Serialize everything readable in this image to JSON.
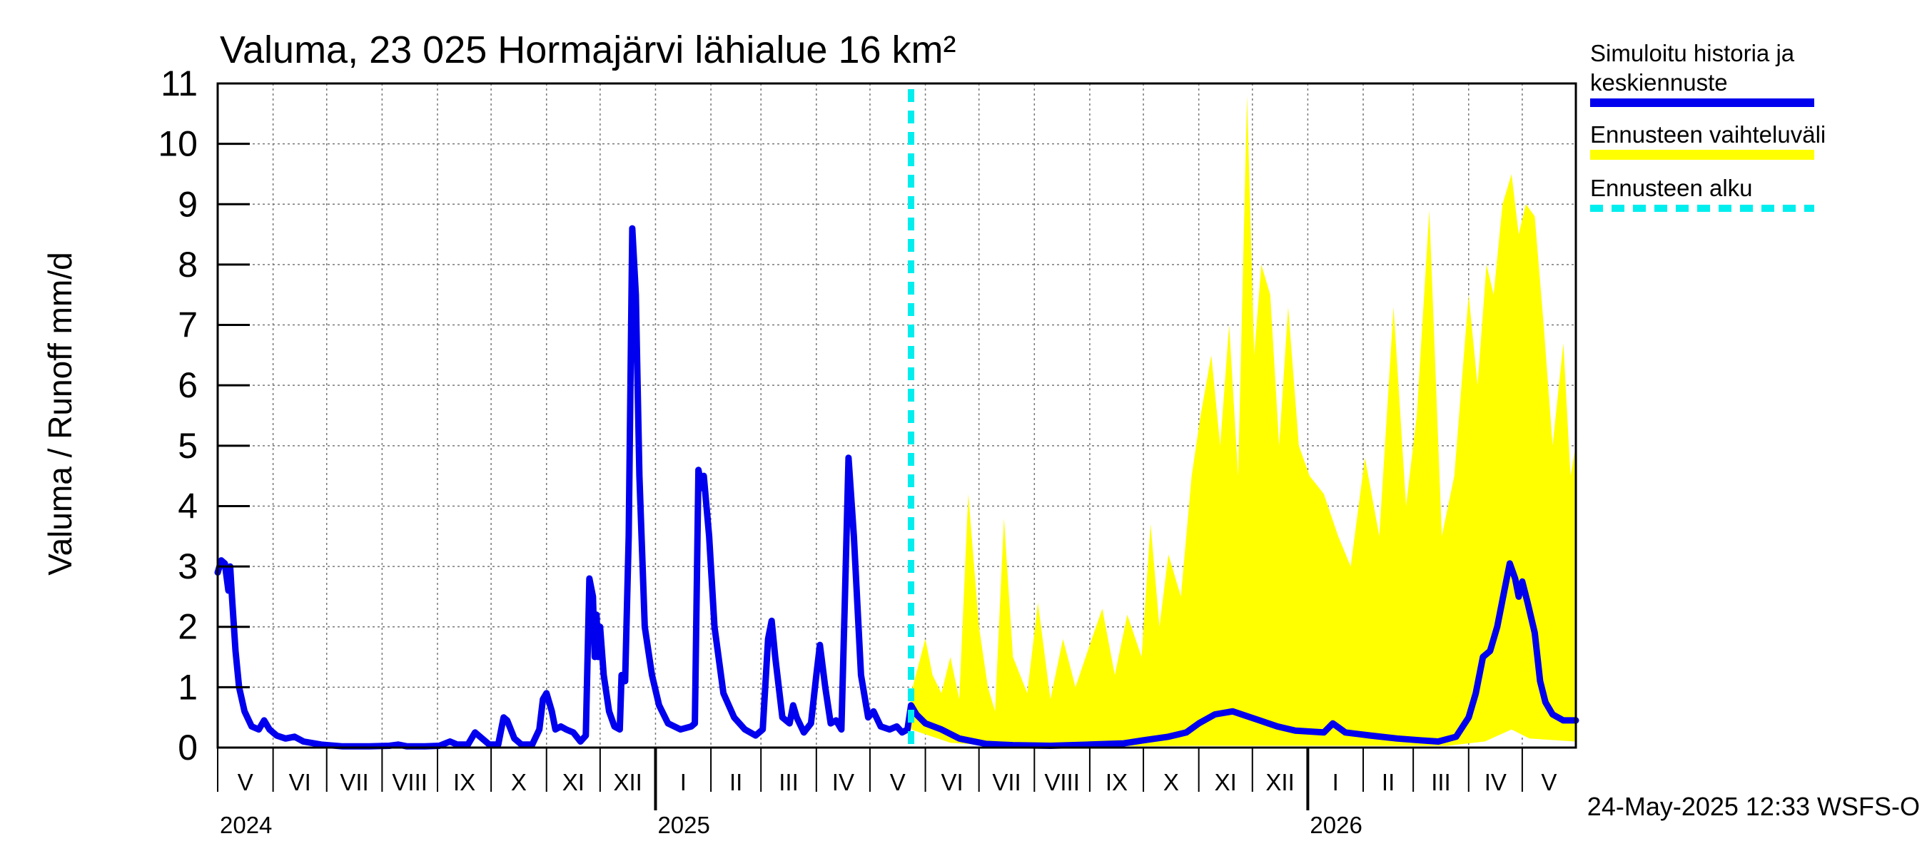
{
  "chart_data": {
    "type": "line",
    "title": "Valuma, 23 025 Hormajärvi lähialue 16 km²",
    "ylabel": "Valuma / Runoff    mm/d",
    "ylim": [
      0,
      11
    ],
    "yticks": [
      0,
      1,
      2,
      3,
      4,
      5,
      6,
      7,
      8,
      9,
      10,
      11
    ],
    "xlim": [
      "2024-05-01",
      "2026-05-31"
    ],
    "forecast_start": "2025-05-24",
    "grid": true,
    "legend_position": "top-right",
    "legend": [
      {
        "label": "Simuloitu historia ja keskiennuste",
        "line1": "Simuloitu historia ja",
        "line2": "keskiennuste",
        "color": "#0000ee",
        "style": "solid"
      },
      {
        "label": "Ennusteen vaihteluväli",
        "color": "#ffff00",
        "style": "band"
      },
      {
        "label": "Ennusteen alku",
        "color": "#00eeee",
        "style": "dashed"
      }
    ],
    "month_labels": [
      {
        "label": "V",
        "date": "2024-05-01"
      },
      {
        "label": "VI",
        "date": "2024-06-01"
      },
      {
        "label": "VII",
        "date": "2024-07-01"
      },
      {
        "label": "VIII",
        "date": "2024-08-01"
      },
      {
        "label": "IX",
        "date": "2024-09-01"
      },
      {
        "label": "X",
        "date": "2024-10-01"
      },
      {
        "label": "XI",
        "date": "2024-11-01"
      },
      {
        "label": "XII",
        "date": "2024-12-01"
      },
      {
        "label": "I",
        "date": "2025-01-01"
      },
      {
        "label": "II",
        "date": "2025-02-01"
      },
      {
        "label": "III",
        "date": "2025-03-01"
      },
      {
        "label": "IV",
        "date": "2025-04-01"
      },
      {
        "label": "V",
        "date": "2025-05-01"
      },
      {
        "label": "VI",
        "date": "2025-06-01"
      },
      {
        "label": "VII",
        "date": "2025-07-01"
      },
      {
        "label": "VIII",
        "date": "2025-08-01"
      },
      {
        "label": "IX",
        "date": "2025-09-01"
      },
      {
        "label": "X",
        "date": "2025-10-01"
      },
      {
        "label": "XI",
        "date": "2025-11-01"
      },
      {
        "label": "XII",
        "date": "2025-12-01"
      },
      {
        "label": "I",
        "date": "2026-01-01"
      },
      {
        "label": "II",
        "date": "2026-02-01"
      },
      {
        "label": "III",
        "date": "2026-03-01"
      },
      {
        "label": "IV",
        "date": "2026-04-01"
      },
      {
        "label": "V",
        "date": "2026-05-01"
      }
    ],
    "year_labels": [
      {
        "label": "2024",
        "date": "2024-05-01"
      },
      {
        "label": "2025",
        "date": "2025-01-01"
      },
      {
        "label": "2026",
        "date": "2026-01-01"
      }
    ],
    "series": [
      {
        "name": "Simuloitu historia ja keskiennuste",
        "color": "#0000ee",
        "points": [
          [
            "2024-05-01",
            2.9
          ],
          [
            "2024-05-03",
            3.1
          ],
          [
            "2024-05-05",
            3.05
          ],
          [
            "2024-05-07",
            2.6
          ],
          [
            "2024-05-08",
            3.0
          ],
          [
            "2024-05-09",
            2.5
          ],
          [
            "2024-05-11",
            1.6
          ],
          [
            "2024-05-13",
            1.0
          ],
          [
            "2024-05-16",
            0.6
          ],
          [
            "2024-05-20",
            0.35
          ],
          [
            "2024-05-24",
            0.3
          ],
          [
            "2024-05-27",
            0.45
          ],
          [
            "2024-05-30",
            0.3
          ],
          [
            "2024-06-03",
            0.2
          ],
          [
            "2024-06-08",
            0.15
          ],
          [
            "2024-06-13",
            0.18
          ],
          [
            "2024-06-18",
            0.1
          ],
          [
            "2024-06-28",
            0.05
          ],
          [
            "2024-07-10",
            0.02
          ],
          [
            "2024-07-25",
            0.02
          ],
          [
            "2024-08-05",
            0.03
          ],
          [
            "2024-08-10",
            0.05
          ],
          [
            "2024-08-15",
            0.02
          ],
          [
            "2024-08-25",
            0.02
          ],
          [
            "2024-09-02",
            0.03
          ],
          [
            "2024-09-08",
            0.1
          ],
          [
            "2024-09-12",
            0.05
          ],
          [
            "2024-09-18",
            0.05
          ],
          [
            "2024-09-22",
            0.25
          ],
          [
            "2024-09-26",
            0.15
          ],
          [
            "2024-09-30",
            0.05
          ],
          [
            "2024-10-05",
            0.05
          ],
          [
            "2024-10-08",
            0.5
          ],
          [
            "2024-10-10",
            0.45
          ],
          [
            "2024-10-14",
            0.15
          ],
          [
            "2024-10-18",
            0.05
          ],
          [
            "2024-10-24",
            0.05
          ],
          [
            "2024-10-28",
            0.3
          ],
          [
            "2024-10-30",
            0.8
          ],
          [
            "2024-11-01",
            0.9
          ],
          [
            "2024-11-04",
            0.6
          ],
          [
            "2024-11-06",
            0.3
          ],
          [
            "2024-11-09",
            0.35
          ],
          [
            "2024-11-12",
            0.3
          ],
          [
            "2024-11-16",
            0.25
          ],
          [
            "2024-11-20",
            0.1
          ],
          [
            "2024-11-23",
            0.2
          ],
          [
            "2024-11-24",
            1.5
          ],
          [
            "2024-11-25",
            2.8
          ],
          [
            "2024-11-27",
            2.5
          ],
          [
            "2024-11-28",
            1.5
          ],
          [
            "2024-11-29",
            2.2
          ],
          [
            "2024-11-30",
            1.5
          ],
          [
            "2024-12-01",
            2.0
          ],
          [
            "2024-12-03",
            1.2
          ],
          [
            "2024-12-06",
            0.6
          ],
          [
            "2024-12-09",
            0.35
          ],
          [
            "2024-12-12",
            0.3
          ],
          [
            "2024-12-13",
            1.2
          ],
          [
            "2024-12-15",
            1.1
          ],
          [
            "2024-12-17",
            3.5
          ],
          [
            "2024-12-19",
            8.6
          ],
          [
            "2024-12-21",
            7.5
          ],
          [
            "2024-12-23",
            4.5
          ],
          [
            "2024-12-26",
            2.0
          ],
          [
            "2024-12-30",
            1.2
          ],
          [
            "2025-01-03",
            0.7
          ],
          [
            "2025-01-08",
            0.4
          ],
          [
            "2025-01-15",
            0.3
          ],
          [
            "2025-01-21",
            0.35
          ],
          [
            "2025-01-23",
            0.4
          ],
          [
            "2025-01-25",
            4.6
          ],
          [
            "2025-01-27",
            4.3
          ],
          [
            "2025-01-28",
            4.5
          ],
          [
            "2025-01-31",
            3.5
          ],
          [
            "2025-02-03",
            2.0
          ],
          [
            "2025-02-08",
            0.9
          ],
          [
            "2025-02-14",
            0.5
          ],
          [
            "2025-02-20",
            0.3
          ],
          [
            "2025-02-26",
            0.2
          ],
          [
            "2025-03-02",
            0.3
          ],
          [
            "2025-03-05",
            1.8
          ],
          [
            "2025-03-07",
            2.1
          ],
          [
            "2025-03-09",
            1.5
          ],
          [
            "2025-03-13",
            0.5
          ],
          [
            "2025-03-17",
            0.4
          ],
          [
            "2025-03-19",
            0.7
          ],
          [
            "2025-03-21",
            0.5
          ],
          [
            "2025-03-25",
            0.25
          ],
          [
            "2025-03-29",
            0.4
          ],
          [
            "2025-04-01",
            1.2
          ],
          [
            "2025-04-03",
            1.7
          ],
          [
            "2025-04-06",
            1.0
          ],
          [
            "2025-04-09",
            0.4
          ],
          [
            "2025-04-12",
            0.45
          ],
          [
            "2025-04-15",
            0.3
          ],
          [
            "2025-04-17",
            2.5
          ],
          [
            "2025-04-19",
            4.8
          ],
          [
            "2025-04-22",
            3.5
          ],
          [
            "2025-04-26",
            1.2
          ],
          [
            "2025-04-30",
            0.5
          ],
          [
            "2025-05-03",
            0.6
          ],
          [
            "2025-05-07",
            0.35
          ],
          [
            "2025-05-12",
            0.3
          ],
          [
            "2025-05-16",
            0.35
          ],
          [
            "2025-05-19",
            0.25
          ],
          [
            "2025-05-22",
            0.3
          ],
          [
            "2025-05-24",
            0.7
          ],
          [
            "2025-05-27",
            0.55
          ],
          [
            "2025-06-01",
            0.4
          ],
          [
            "2025-06-10",
            0.3
          ],
          [
            "2025-06-20",
            0.15
          ],
          [
            "2025-07-05",
            0.06
          ],
          [
            "2025-07-20",
            0.04
          ],
          [
            "2025-08-10",
            0.03
          ],
          [
            "2025-09-01",
            0.05
          ],
          [
            "2025-09-20",
            0.07
          ],
          [
            "2025-10-01",
            0.12
          ],
          [
            "2025-10-15",
            0.18
          ],
          [
            "2025-10-25",
            0.25
          ],
          [
            "2025-11-01",
            0.4
          ],
          [
            "2025-11-10",
            0.55
          ],
          [
            "2025-11-20",
            0.6
          ],
          [
            "2025-11-25",
            0.55
          ],
          [
            "2025-12-05",
            0.45
          ],
          [
            "2025-12-15",
            0.35
          ],
          [
            "2025-12-25",
            0.28
          ],
          [
            "2026-01-10",
            0.25
          ],
          [
            "2026-01-15",
            0.4
          ],
          [
            "2026-01-22",
            0.25
          ],
          [
            "2026-02-05",
            0.2
          ],
          [
            "2026-02-20",
            0.15
          ],
          [
            "2026-03-05",
            0.12
          ],
          [
            "2026-03-15",
            0.1
          ],
          [
            "2026-03-25",
            0.18
          ],
          [
            "2026-04-01",
            0.5
          ],
          [
            "2026-04-05",
            0.9
          ],
          [
            "2026-04-09",
            1.5
          ],
          [
            "2026-04-13",
            1.6
          ],
          [
            "2026-04-17",
            2.0
          ],
          [
            "2026-04-21",
            2.6
          ],
          [
            "2026-04-24",
            3.05
          ],
          [
            "2026-04-27",
            2.8
          ],
          [
            "2026-04-29",
            2.5
          ],
          [
            "2026-05-01",
            2.75
          ],
          [
            "2026-05-04",
            2.4
          ],
          [
            "2026-05-08",
            1.9
          ],
          [
            "2026-05-11",
            1.1
          ],
          [
            "2026-05-14",
            0.75
          ],
          [
            "2026-05-18",
            0.55
          ],
          [
            "2026-05-24",
            0.45
          ],
          [
            "2026-05-31",
            0.45
          ]
        ]
      }
    ],
    "band": {
      "name": "Ennusteen vaihteluväli",
      "color": "#ffff00",
      "lower": [
        [
          "2025-05-24",
          0.3
        ],
        [
          "2025-06-15",
          0.08
        ],
        [
          "2025-07-15",
          0.02
        ],
        [
          "2025-09-01",
          0.02
        ],
        [
          "2025-11-01",
          0.03
        ],
        [
          "2025-12-15",
          0.03
        ],
        [
          "2026-02-01",
          0.03
        ],
        [
          "2026-03-20",
          0.03
        ],
        [
          "2026-04-10",
          0.1
        ],
        [
          "2026-04-25",
          0.3
        ],
        [
          "2026-05-05",
          0.15
        ],
        [
          "2026-05-31",
          0.1
        ]
      ],
      "upper": [
        [
          "2025-05-24",
          0.9
        ],
        [
          "2025-06-01",
          1.8
        ],
        [
          "2025-06-05",
          1.2
        ],
        [
          "2025-06-10",
          0.9
        ],
        [
          "2025-06-15",
          1.5
        ],
        [
          "2025-06-20",
          0.8
        ],
        [
          "2025-06-25",
          4.2
        ],
        [
          "2025-07-01",
          2.0
        ],
        [
          "2025-07-06",
          1.0
        ],
        [
          "2025-07-10",
          0.6
        ],
        [
          "2025-07-15",
          3.8
        ],
        [
          "2025-07-20",
          1.5
        ],
        [
          "2025-07-28",
          0.9
        ],
        [
          "2025-08-03",
          2.4
        ],
        [
          "2025-08-10",
          0.8
        ],
        [
          "2025-08-17",
          1.8
        ],
        [
          "2025-08-24",
          1.0
        ],
        [
          "2025-09-01",
          1.7
        ],
        [
          "2025-09-08",
          2.3
        ],
        [
          "2025-09-15",
          1.2
        ],
        [
          "2025-09-22",
          2.2
        ],
        [
          "2025-09-30",
          1.5
        ],
        [
          "2025-10-05",
          3.7
        ],
        [
          "2025-10-10",
          2.0
        ],
        [
          "2025-10-15",
          3.2
        ],
        [
          "2025-10-22",
          2.5
        ],
        [
          "2025-10-28",
          4.5
        ],
        [
          "2025-11-02",
          5.5
        ],
        [
          "2025-11-08",
          6.5
        ],
        [
          "2025-11-13",
          5.0
        ],
        [
          "2025-11-18",
          7.0
        ],
        [
          "2025-11-23",
          4.5
        ],
        [
          "2025-11-28",
          10.8
        ],
        [
          "2025-12-02",
          6.5
        ],
        [
          "2025-12-06",
          8.0
        ],
        [
          "2025-12-11",
          7.5
        ],
        [
          "2025-12-16",
          5.0
        ],
        [
          "2025-12-21",
          7.3
        ],
        [
          "2025-12-27",
          5.0
        ],
        [
          "2026-01-02",
          4.5
        ],
        [
          "2026-01-10",
          4.2
        ],
        [
          "2026-01-18",
          3.5
        ],
        [
          "2026-01-25",
          3.0
        ],
        [
          "2026-02-02",
          4.8
        ],
        [
          "2026-02-10",
          3.5
        ],
        [
          "2026-02-18",
          7.3
        ],
        [
          "2026-02-25",
          4.0
        ],
        [
          "2026-03-03",
          5.5
        ],
        [
          "2026-03-10",
          8.9
        ],
        [
          "2026-03-17",
          3.5
        ],
        [
          "2026-03-24",
          4.5
        ],
        [
          "2026-04-01",
          7.5
        ],
        [
          "2026-04-06",
          6.0
        ],
        [
          "2026-04-11",
          8.0
        ],
        [
          "2026-04-15",
          7.5
        ],
        [
          "2026-04-20",
          9.0
        ],
        [
          "2026-04-25",
          9.5
        ],
        [
          "2026-04-29",
          8.5
        ],
        [
          "2026-05-03",
          9.0
        ],
        [
          "2026-05-08",
          8.8
        ],
        [
          "2026-05-13",
          7.0
        ],
        [
          "2026-05-18",
          5.0
        ],
        [
          "2026-05-24",
          6.7
        ],
        [
          "2026-05-28",
          4.5
        ],
        [
          "2026-05-31",
          5.0
        ]
      ]
    }
  },
  "footer": {
    "timestamp": "24-May-2025 12:33 WSFS-O"
  }
}
